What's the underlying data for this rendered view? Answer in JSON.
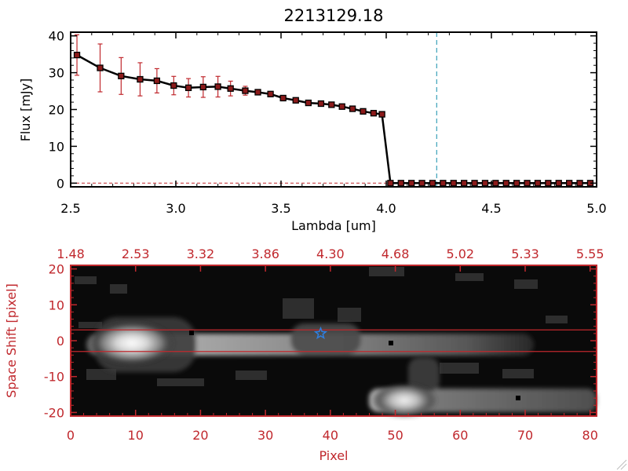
{
  "colors": {
    "axis_black": "#000000",
    "axis_red": "#c0282d",
    "error_bar": "#c0282d",
    "line_marker": "#000000",
    "marker_fill": "#8b1a1a",
    "cutoff_line": "#3aa0b8",
    "star": "#2f7fe0",
    "image_bg": "#0a0a0a"
  },
  "chart_data": [
    {
      "type": "line",
      "title": "2213129.18",
      "xlabel": "Lambda [um]",
      "ylabel": "Flux [mJy]",
      "xlim": [
        2.5,
        5.0
      ],
      "ylim": [
        -1,
        41
      ],
      "x_ticks": [
        "2.5",
        "3.0",
        "3.5",
        "4.0",
        "4.5",
        "5.0"
      ],
      "x_tick_values": [
        2.5,
        3.0,
        3.5,
        4.0,
        4.5,
        5.0
      ],
      "y_ticks": [
        "0",
        "10",
        "20",
        "30",
        "40"
      ],
      "y_tick_values": [
        0,
        10,
        20,
        30,
        40
      ],
      "grid": false,
      "vline_x": 4.24,
      "series": [
        {
          "x": [
            2.53,
            2.64,
            2.74,
            2.83,
            2.91,
            2.99,
            3.06,
            3.13,
            3.2,
            3.26,
            3.33,
            3.39,
            3.45,
            3.51,
            3.57,
            3.63,
            3.69,
            3.74,
            3.79,
            3.84,
            3.89,
            3.94,
            3.98,
            4.02,
            4.07,
            4.12,
            4.17,
            4.22,
            4.27,
            4.32,
            4.37,
            4.42,
            4.47,
            4.52,
            4.57,
            4.62,
            4.67,
            4.72,
            4.77,
            4.82,
            4.87,
            4.92,
            4.97
          ],
          "y": [
            34.8,
            31.3,
            29.1,
            28.2,
            27.8,
            26.5,
            25.9,
            26.1,
            26.2,
            25.7,
            25.1,
            24.7,
            24.2,
            23.1,
            22.5,
            21.8,
            21.6,
            21.3,
            20.8,
            20.2,
            19.5,
            19.0,
            18.7,
            0,
            0,
            0,
            0,
            0,
            0,
            0,
            0,
            0,
            0,
            0,
            0,
            0,
            0,
            0,
            0,
            0,
            0,
            0,
            0
          ],
          "err": [
            5.5,
            6.5,
            5.0,
            4.5,
            3.3,
            2.5,
            2.5,
            2.8,
            2.8,
            2.0,
            1.2,
            0.6,
            0.6,
            0.5,
            0.5,
            0.4,
            0.4,
            0.4,
            0.4,
            0.4,
            0.4,
            0.4,
            0.4,
            0,
            0,
            0,
            0,
            0,
            0,
            0,
            0,
            0,
            0,
            0,
            0,
            0,
            0,
            0,
            0,
            0,
            0,
            0,
            0
          ]
        }
      ]
    },
    {
      "type": "heatmap",
      "xlabel": "Pixel",
      "ylabel": "Space Shift [pixel]",
      "xlim": [
        0,
        81
      ],
      "ylim": [
        -21,
        21
      ],
      "x_ticks": [
        "0",
        "10",
        "20",
        "30",
        "40",
        "50",
        "60",
        "70",
        "80"
      ],
      "x_tick_values": [
        0,
        10,
        20,
        30,
        40,
        50,
        60,
        70,
        80
      ],
      "y_ticks": [
        "20",
        "10",
        "0",
        "-10",
        "-20"
      ],
      "y_tick_values": [
        20,
        10,
        0,
        -10,
        -20
      ],
      "top_ticks": [
        "1.48",
        "2.53",
        "3.32",
        "3.86",
        "4.30",
        "4.68",
        "5.02",
        "5.33",
        "5.55"
      ],
      "aperture_rows": [
        3,
        -3
      ],
      "star_marker": [
        38.5,
        2
      ]
    }
  ]
}
